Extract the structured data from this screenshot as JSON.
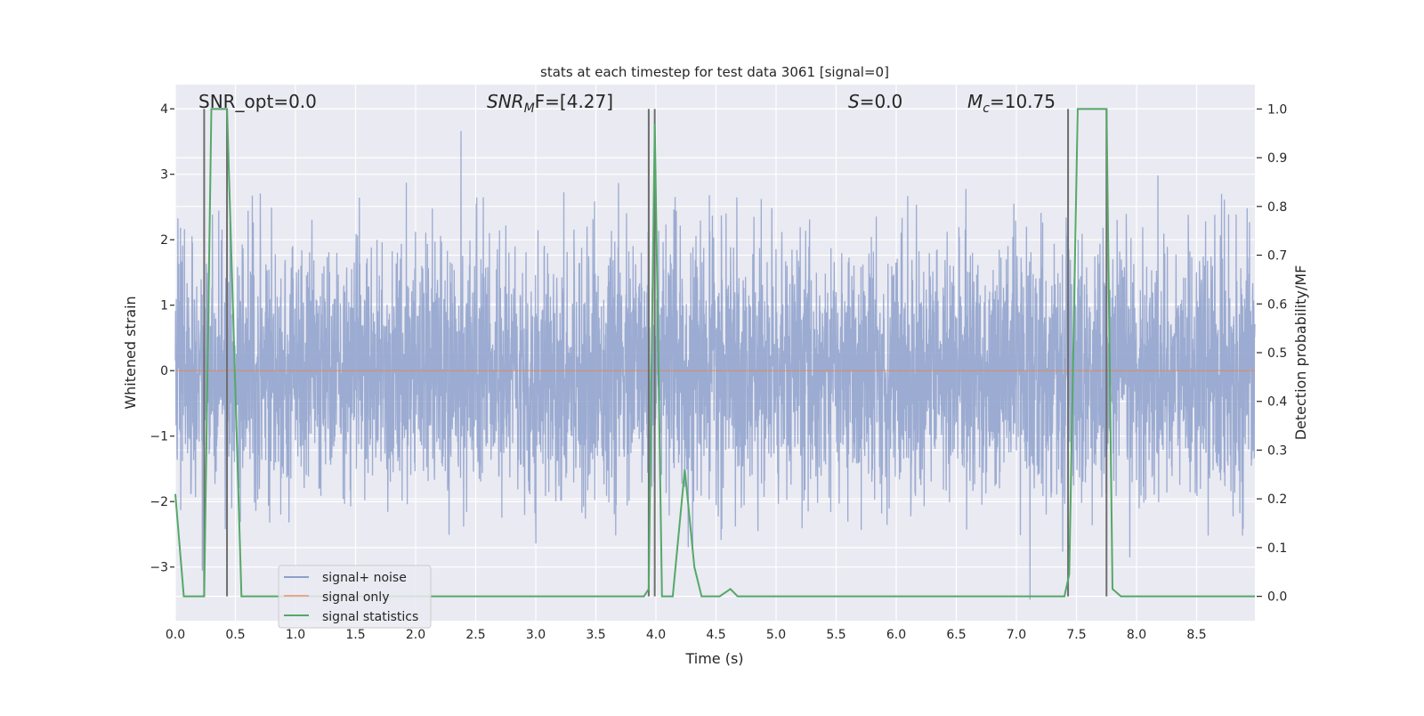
{
  "chart_data": {
    "type": "line",
    "title": "stats at each timestep for test data 3061 [signal=0]",
    "xlabel": "Time (s)",
    "ylabel": "Whitened strain",
    "y2label": "Detection probability/MF",
    "xlim": [
      0,
      8.985
    ],
    "ylim": [
      -3.82,
      4.37
    ],
    "y2lim": [
      -0.05,
      1.05
    ],
    "grid": true,
    "legend_position": "lower-left",
    "x_ticks": [
      "0.0",
      "0.5",
      "1.0",
      "1.5",
      "2.0",
      "2.5",
      "3.0",
      "3.5",
      "4.0",
      "4.5",
      "5.0",
      "5.5",
      "6.0",
      "6.5",
      "7.0",
      "7.5",
      "8.0",
      "8.5"
    ],
    "y_ticks": [
      "4",
      "3",
      "2",
      "1",
      "0",
      "−1",
      "−2",
      "−3"
    ],
    "y_tick_values": [
      4,
      3,
      2,
      1,
      0,
      -1,
      -2,
      -3
    ],
    "y2_ticks": [
      "0.0",
      "0.1",
      "0.2",
      "0.3",
      "0.4",
      "0.5",
      "0.6",
      "0.7",
      "0.8",
      "0.9",
      "1.0"
    ],
    "annotations": {
      "snr_opt": "SNR_opt=0.0",
      "snr_mf_main": "SNR",
      "snr_mf_sub": "M",
      "snr_mf_rest": "F=[4.27]",
      "s_italic": "S",
      "s_rest": "=0.0",
      "mc_main": "M",
      "mc_sub": "c",
      "mc_rest": "=10.75"
    },
    "series": [
      {
        "name": "signal+ noise",
        "color": "#8da0cb",
        "axis": "left",
        "description_range": [
          -3.5,
          4.0
        ]
      },
      {
        "name": "signal only",
        "color": "#dd8452",
        "axis": "left",
        "x": [
          0,
          8.985
        ],
        "y": [
          0,
          0
        ]
      },
      {
        "name": "signal statistics",
        "color": "#55a868",
        "axis": "right",
        "x": [
          0.0,
          0.07,
          0.24,
          0.3,
          0.43,
          0.55,
          3.9,
          3.94,
          3.99,
          4.05,
          4.14,
          4.24,
          4.32,
          4.38,
          4.53,
          4.62,
          4.68,
          7.4,
          7.44,
          7.51,
          7.75,
          7.8,
          7.87,
          8.985
        ],
        "y": [
          0.21,
          0.0,
          0.0,
          1.0,
          1.0,
          0.0,
          0.0,
          0.015,
          0.97,
          0.0,
          0.0,
          0.26,
          0.06,
          0.0,
          0.0,
          0.015,
          0.0,
          0.0,
          0.045,
          1.0,
          1.0,
          0.015,
          0.0,
          0.0
        ]
      }
    ],
    "vertical_markers": {
      "color": "#6e6e6e",
      "x": [
        0.24,
        0.43,
        3.94,
        3.99,
        7.43,
        7.75
      ]
    }
  }
}
